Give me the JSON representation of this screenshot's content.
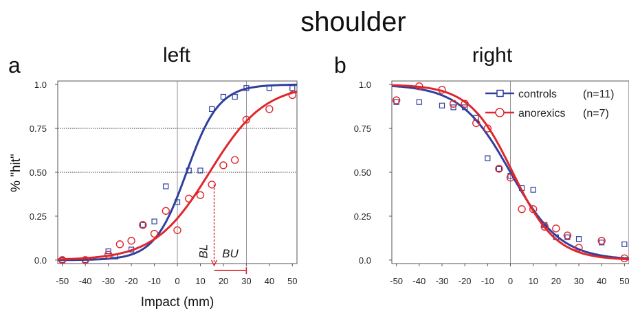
{
  "figure": {
    "title": "shoulder"
  },
  "colors": {
    "controls": "#2e3f9e",
    "anorexics": "#e0262b",
    "axis": "#555555",
    "grid": "#333333"
  },
  "chart_data": [
    {
      "type": "scatter",
      "panel_letter": "a",
      "title": "left",
      "xlabel": "Impact (mm)",
      "ylabel": "% \"hit\"",
      "xlim": [
        -52,
        52
      ],
      "ylim": [
        -0.02,
        1.02
      ],
      "xticks": [
        -50,
        -40,
        -30,
        -20,
        -10,
        0,
        10,
        20,
        30,
        40,
        50
      ],
      "xtick_labels": [
        "-50",
        "-40",
        "-30",
        "-20",
        "-10",
        "0",
        "10",
        "20",
        "30",
        "40",
        "50"
      ],
      "yticks": [
        0,
        0.25,
        0.5,
        0.75,
        1.0
      ],
      "ytick_labels": [
        "0.0",
        "0.25",
        "0.50",
        "0.75",
        "1.0"
      ],
      "reference_lines": {
        "y": [
          0.5,
          0.75
        ],
        "x": [
          0,
          30
        ]
      },
      "series": [
        {
          "key": "controls",
          "marker": "square",
          "x": [
            -50,
            -40,
            -30,
            -27,
            -20,
            -15,
            -10,
            -5,
            0,
            5,
            10,
            15,
            20,
            25,
            30,
            40,
            50
          ],
          "y": [
            0.0,
            0.0,
            0.05,
            0.02,
            0.06,
            0.2,
            0.22,
            0.42,
            0.33,
            0.51,
            0.51,
            0.86,
            0.93,
            0.93,
            0.98,
            0.98,
            0.98
          ],
          "fit": {
            "mu": 4,
            "s": 7
          }
        },
        {
          "key": "anorexics",
          "marker": "circle",
          "x": [
            -50,
            -40,
            -30,
            -25,
            -20,
            -15,
            -10,
            -5,
            0,
            5,
            10,
            15,
            20,
            25,
            30,
            40,
            50
          ],
          "y": [
            0.0,
            0.0,
            0.03,
            0.09,
            0.11,
            0.2,
            0.15,
            0.28,
            0.17,
            0.35,
            0.37,
            0.43,
            0.54,
            0.57,
            0.8,
            0.86,
            0.94
          ],
          "fit": {
            "mu": 14,
            "s": 12
          }
        }
      ],
      "annotations": [
        {
          "text": "BL",
          "x": 16,
          "y_from": 0.43,
          "y_to": 0.0
        },
        {
          "text": "BU",
          "x_from": 16,
          "x_to": 30,
          "y": -0.06
        }
      ]
    },
    {
      "type": "scatter",
      "panel_letter": "b",
      "title": "right",
      "xlim": [
        -52,
        52
      ],
      "ylim": [
        -0.02,
        1.02
      ],
      "xticks": [
        -50,
        -40,
        -30,
        -20,
        -10,
        0,
        10,
        20,
        30,
        40,
        50
      ],
      "xtick_labels": [
        "-50",
        "-40",
        "-30",
        "-20",
        "-10",
        "0",
        "10",
        "20",
        "30",
        "40",
        "50"
      ],
      "yticks": [
        0,
        0.25,
        0.5,
        0.75,
        1.0
      ],
      "ytick_labels": [
        "0.0",
        "0.25",
        "0.50",
        "0.75",
        "1.0"
      ],
      "reference_lines": {
        "x": [
          0
        ]
      },
      "legend_position": "top-right",
      "legend": [
        {
          "key": "controls",
          "label": "controls",
          "n": "(n=11)"
        },
        {
          "key": "anorexics",
          "label": "anorexics",
          "n": "(n=7)"
        }
      ],
      "series": [
        {
          "key": "controls",
          "marker": "square",
          "x": [
            -50,
            -40,
            -30,
            -25,
            -20,
            -15,
            -10,
            -5,
            0,
            5,
            10,
            15,
            20,
            25,
            30,
            40,
            50
          ],
          "y": [
            0.9,
            0.9,
            0.88,
            0.87,
            0.87,
            0.81,
            0.58,
            0.52,
            0.48,
            0.41,
            0.4,
            0.2,
            0.13,
            0.13,
            0.12,
            0.1,
            0.09
          ],
          "fit": {
            "mu": 0,
            "s": -11
          }
        },
        {
          "key": "anorexics",
          "marker": "circle",
          "x": [
            -50,
            -40,
            -30,
            -25,
            -20,
            -15,
            -10,
            -5,
            0,
            5,
            10,
            15,
            20,
            25,
            30,
            40,
            50
          ],
          "y": [
            0.91,
            0.99,
            0.97,
            0.89,
            0.89,
            0.78,
            0.75,
            0.52,
            0.47,
            0.29,
            0.29,
            0.19,
            0.18,
            0.14,
            0.07,
            0.11,
            0.01
          ],
          "fit": {
            "mu": 1,
            "s": -9.5
          }
        }
      ]
    }
  ]
}
